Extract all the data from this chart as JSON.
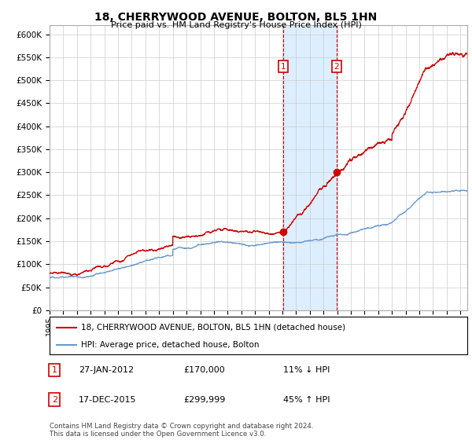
{
  "title": "18, CHERRYWOOD AVENUE, BOLTON, BL5 1HN",
  "subtitle": "Price paid vs. HM Land Registry's House Price Index (HPI)",
  "legend_line1": "18, CHERRYWOOD AVENUE, BOLTON, BL5 1HN (detached house)",
  "legend_line2": "HPI: Average price, detached house, Bolton",
  "annotation1_label": "1",
  "annotation1_date": "27-JAN-2012",
  "annotation1_price": "£170,000",
  "annotation1_hpi": "11% ↓ HPI",
  "annotation2_label": "2",
  "annotation2_date": "17-DEC-2015",
  "annotation2_price": "£299,999",
  "annotation2_hpi": "45% ↑ HPI",
  "footer": "Contains HM Land Registry data © Crown copyright and database right 2024.\nThis data is licensed under the Open Government Licence v3.0.",
  "red_color": "#cc0000",
  "blue_color": "#6699cc",
  "shaded_color": "#ddeeff",
  "background_color": "#ffffff",
  "grid_color": "#cccccc",
  "ylim": [
    0,
    620000
  ],
  "yticks": [
    0,
    50000,
    100000,
    150000,
    200000,
    250000,
    300000,
    350000,
    400000,
    450000,
    500000,
    550000,
    600000
  ],
  "sale1_date_num": 2012.073,
  "sale1_price": 170000,
  "sale2_date_num": 2015.958,
  "sale2_price": 299999,
  "shade_start": 2012.073,
  "shade_end": 2015.958,
  "xmin": 1995,
  "xmax": 2025.5
}
